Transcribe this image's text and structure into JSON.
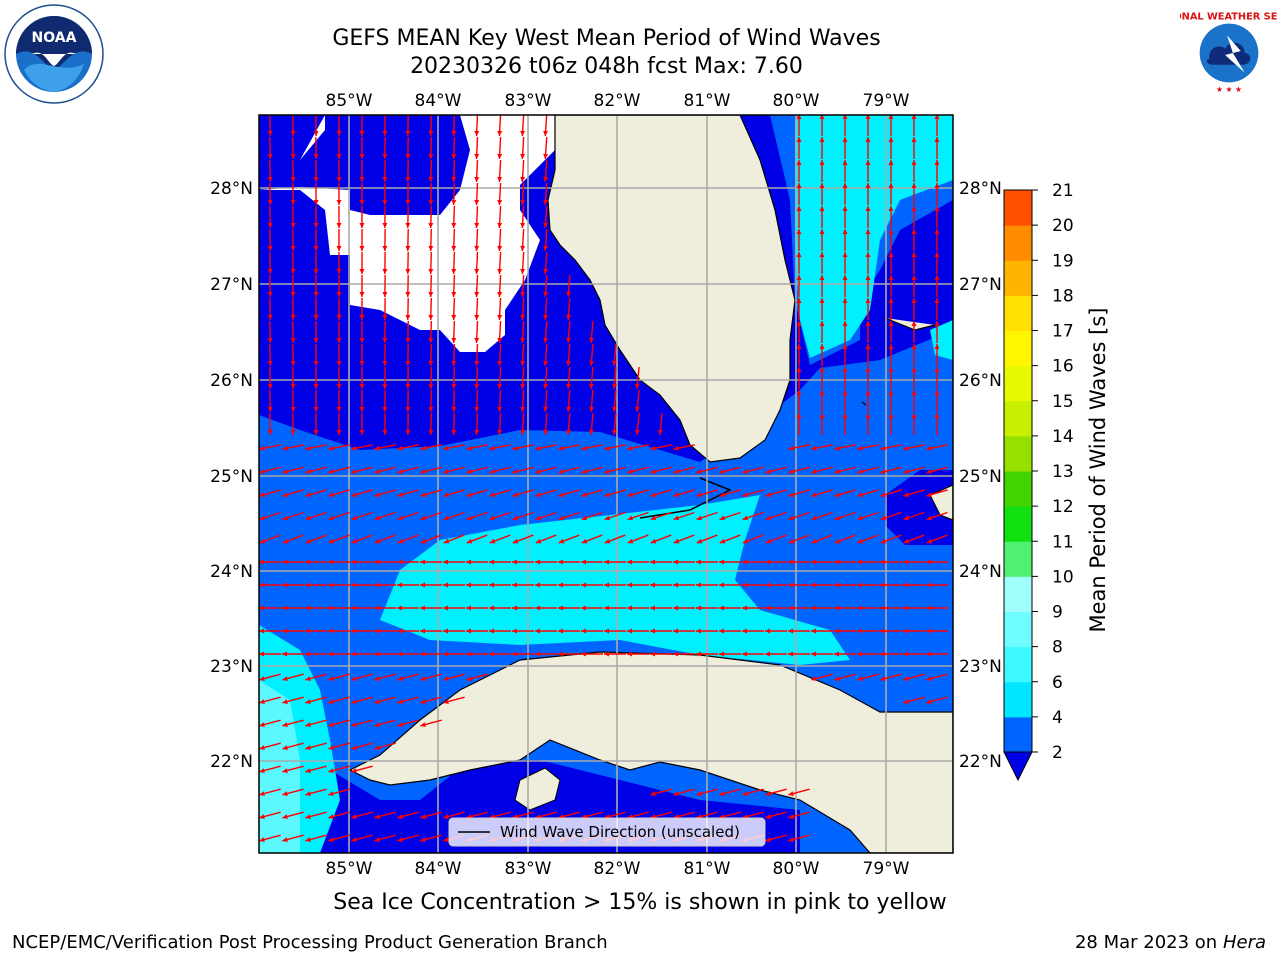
{
  "header": {
    "title_line1": "GEFS MEAN Key West Mean Period of Wind Waves",
    "title_line2": "20230326 t06z 048h fcst   Max: 7.60"
  },
  "logos": {
    "left": "noaa-logo",
    "right": "national-weather-service-logo",
    "left_text": "NOAA",
    "right_text": "NATIONAL WEATHER SERVICE"
  },
  "map": {
    "lon_labels": [
      "85°W",
      "84°W",
      "83°W",
      "82°W",
      "81°W",
      "80°W",
      "79°W"
    ],
    "lat_labels": [
      "28°N",
      "27°N",
      "26°N",
      "25°N",
      "24°N",
      "23°N",
      "22°N"
    ],
    "legend_label": "Wind Wave Direction (unscaled)",
    "arrow_color": "#ff0000",
    "land_color": "#efeddc"
  },
  "colorbar": {
    "label": "Mean Period of Wind Waves [s]",
    "ticks": [
      "2",
      "4",
      "6",
      "8",
      "9",
      "10",
      "11",
      "12",
      "13",
      "14",
      "15",
      "16",
      "17",
      "18",
      "19",
      "20",
      "21"
    ],
    "colors": [
      "#0064ff",
      "#00e6ff",
      "#3cf8ff",
      "#6efcff",
      "#a0fffa",
      "#50f070",
      "#10e010",
      "#42d400",
      "#96e000",
      "#c8ee00",
      "#e8f800",
      "#fff600",
      "#ffe000",
      "#ffb400",
      "#ff8c00",
      "#ff5000",
      "#ff2800",
      "#ff0000"
    ],
    "under_color": "#0000e6"
  },
  "footer": {
    "note": "Sea Ice Concentration > 15% is shown in pink to yellow",
    "credit": "NCEP/EMC/Verification Post Processing Product Generation Branch",
    "date": "28 Mar 2023 on",
    "machine": "Hera"
  }
}
